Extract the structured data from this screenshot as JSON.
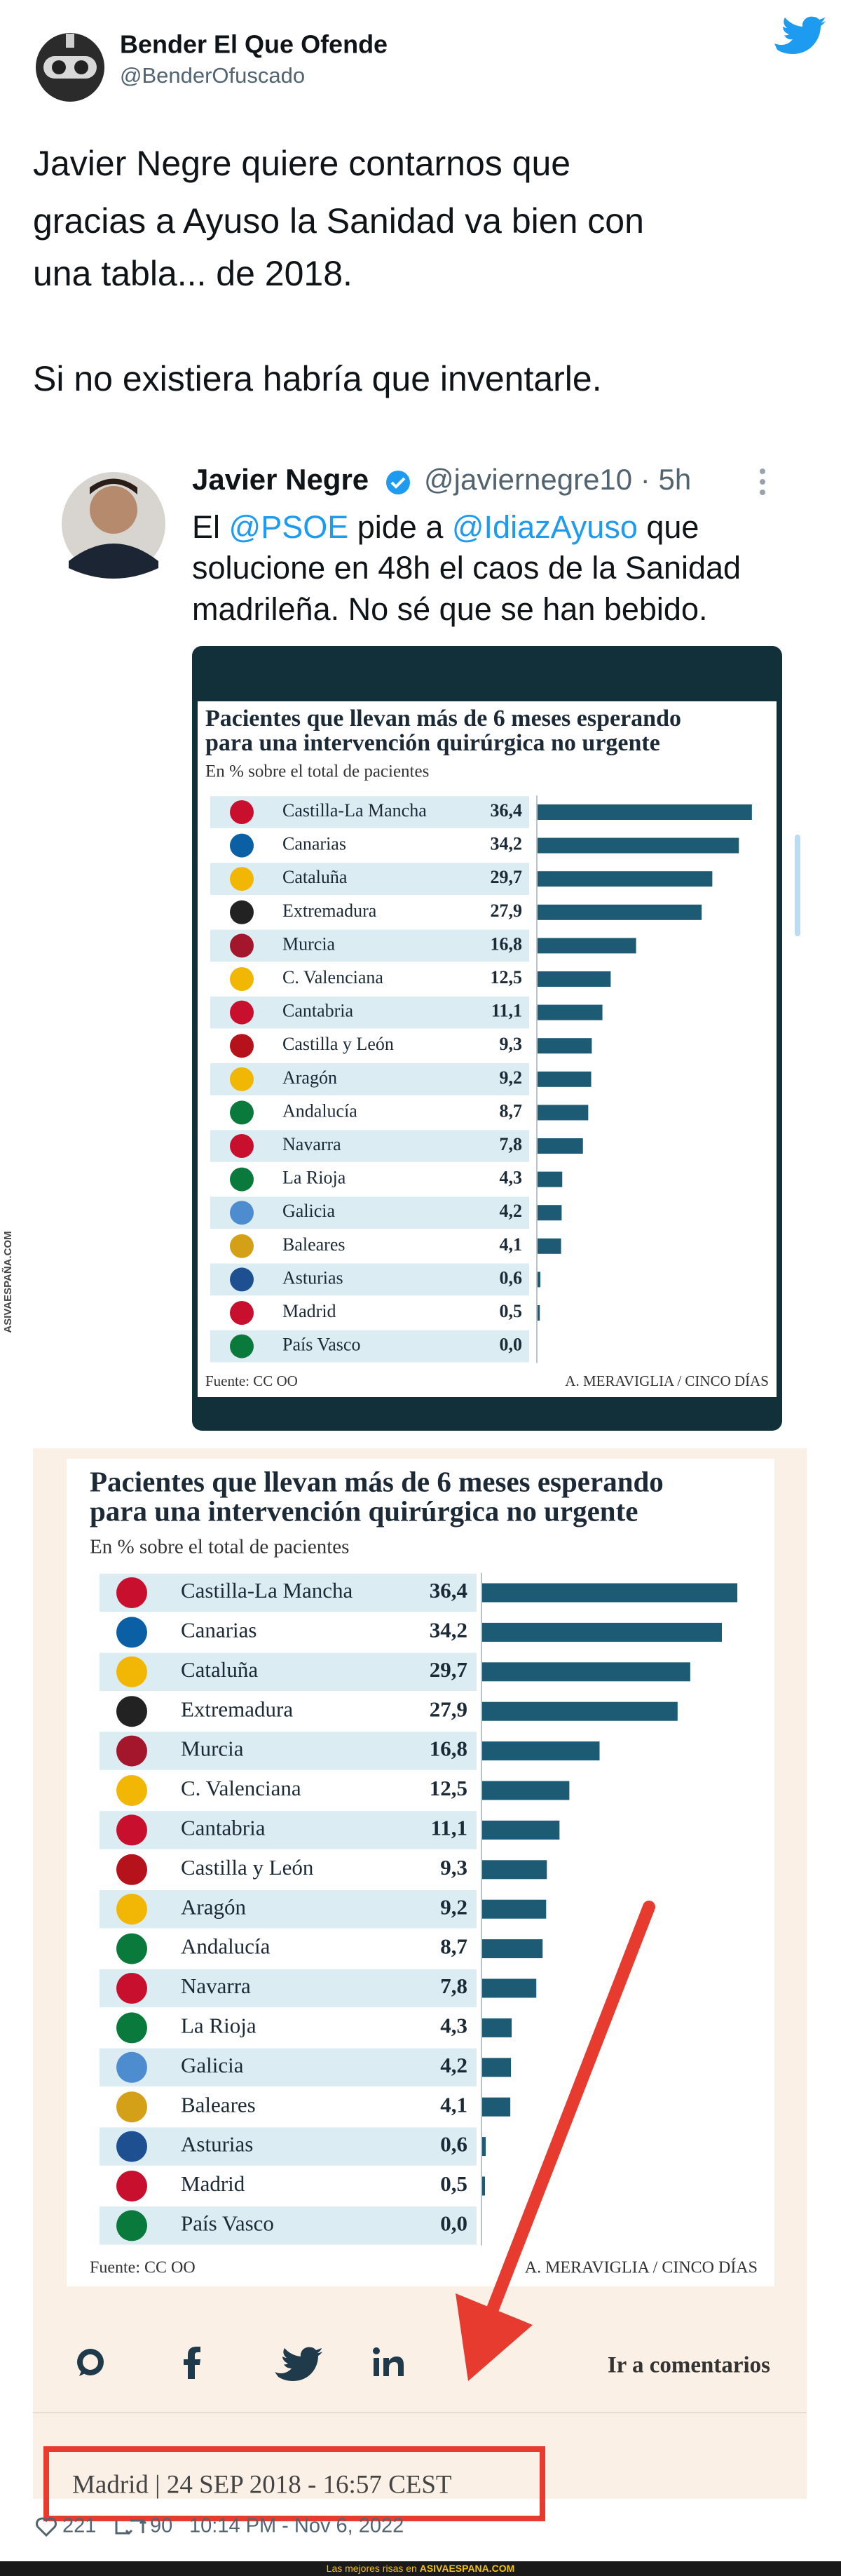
{
  "tweet": {
    "author": "Bender El Que Ofende",
    "handle": "@BenderOfuscado",
    "text_lines": [
      "Javier Negre quiere contarnos que",
      "gracias a Ayuso la Sanidad va bien con",
      "una tabla... de 2018.",
      "Si no existiera habría que inventarle."
    ],
    "likes": 221,
    "retweets": 90,
    "timestamp": "10:14 PM - Nov 6, 2022"
  },
  "quoted": {
    "author": "Javier Negre",
    "meta": "@javiernegre10 · 5h",
    "text_lines": [
      [
        "El ",
        "@PSOE",
        " pide a ",
        "@IdiazAyuso",
        " que"
      ],
      "solucione en 48h el caos de la Sanidad",
      "madrileña. No sé que se han bebido."
    ]
  },
  "chart_data": {
    "type": "bar",
    "title_lines": [
      "Pacientes que llevan más de 6 meses esperando",
      "para una intervención quirúrgica no urgente"
    ],
    "subtitle": "En % sobre el total de pacientes",
    "categories": [
      "Castilla-La Mancha",
      "Canarias",
      "Cataluña",
      "Extremadura",
      "Murcia",
      "C. Valenciana",
      "Cantabria",
      "Castilla y León",
      "Aragón",
      "Andalucía",
      "Navarra",
      "La Rioja",
      "Galicia",
      "Baleares",
      "Asturias",
      "Madrid",
      "País Vasco"
    ],
    "values": [
      36.4,
      34.2,
      29.7,
      27.9,
      16.8,
      12.5,
      11.1,
      9.3,
      9.2,
      8.7,
      7.8,
      4.3,
      4.2,
      4.1,
      0.6,
      0.5,
      0.0
    ],
    "value_labels": [
      "36,4",
      "34,2",
      "29,7",
      "27,9",
      "16,8",
      "12,5",
      "11,1",
      "9,3",
      "9,2",
      "8,7",
      "7,8",
      "4,3",
      "4,2",
      "4,1",
      "0,6",
      "0,5",
      "0,0"
    ],
    "color": "#1d5a74",
    "source": "Fuente: CC OO",
    "credit": "A. MERAVIGLIA / CINCO DÍAS"
  },
  "article": {
    "comments_link": "Ir a comentarios",
    "dateline": "Madrid | 24 SEP 2018 - 16:57 CEST"
  },
  "watermark": "ASIVAESPAÑA.COM",
  "footer": [
    "Las mejores risas en ",
    "ASIVAESPANA.COM"
  ]
}
